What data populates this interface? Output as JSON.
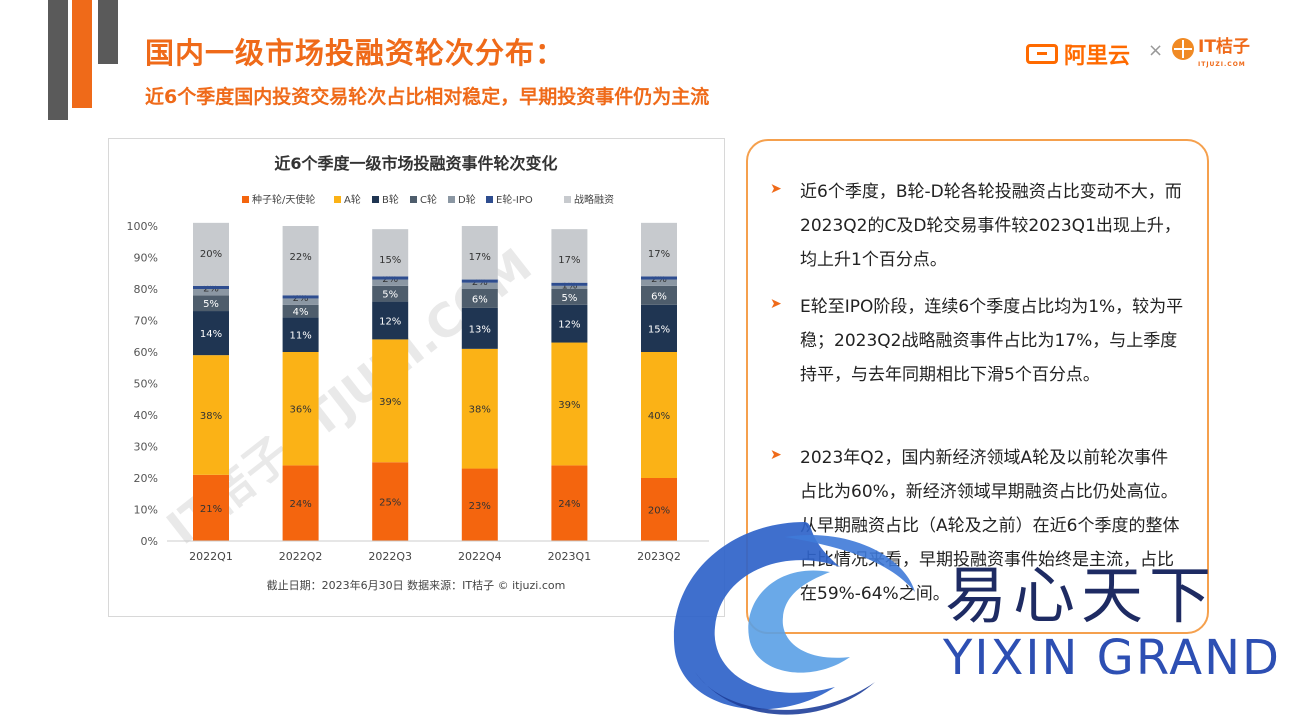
{
  "header": {
    "title": "国内一级市场投融资轮次分布：",
    "subtitle": "近6个季度国内投资交易轮次占比相对稳定，早期投资事件仍为主流"
  },
  "logos": {
    "aliyun": "阿里云",
    "separator": "×",
    "itjuzi": "IT桔子",
    "itjuzi_sub": "ITJUZI.COM"
  },
  "chart_data": {
    "type": "bar",
    "stacked": true,
    "title": "近6个季度一级市场投融资事件轮次变化",
    "categories": [
      "2022Q1",
      "2022Q2",
      "2022Q3",
      "2022Q4",
      "2023Q1",
      "2023Q2"
    ],
    "series": [
      {
        "name": "种子轮/天使轮",
        "color": "#f4650e",
        "values": [
          21,
          24,
          25,
          23,
          24,
          20
        ]
      },
      {
        "name": "A轮",
        "color": "#fbb216",
        "values": [
          38,
          36,
          39,
          38,
          39,
          40
        ]
      },
      {
        "name": "B轮",
        "color": "#1f3552",
        "values": [
          14,
          11,
          12,
          13,
          12,
          15
        ]
      },
      {
        "name": "C轮",
        "color": "#4e5d6c",
        "values": [
          5,
          4,
          5,
          6,
          5,
          6
        ]
      },
      {
        "name": "D轮",
        "color": "#8b97a3",
        "values": [
          2,
          2,
          2,
          2,
          1,
          2
        ]
      },
      {
        "name": "E轮-IPO",
        "color": "#2e4d8f",
        "values": [
          1,
          1,
          1,
          1,
          1,
          1
        ]
      },
      {
        "name": "战略融资",
        "color": "#c7cace",
        "values": [
          20,
          22,
          15,
          17,
          17,
          17
        ]
      }
    ],
    "labels": [
      [
        "21%",
        "24%",
        "25%",
        "23%",
        "24%",
        "20%"
      ],
      [
        "38%",
        "36%",
        "39%",
        "38%",
        "39%",
        "40%"
      ],
      [
        "14%",
        "11%",
        "12%",
        "13%",
        "12%",
        "15%"
      ],
      [
        "5%",
        "4%",
        "5%",
        "6%",
        "5%",
        "6%"
      ],
      [
        "2%",
        "2%",
        "2%",
        "2%",
        "1%",
        "2%"
      ],
      [
        "1%",
        "1%",
        "1%",
        "1%",
        "1%",
        "1%"
      ],
      [
        "20%",
        "22%",
        "15%",
        "17%",
        "17%",
        "17%"
      ]
    ],
    "yticks": [
      "0%",
      "10%",
      "20%",
      "30%",
      "40%",
      "50%",
      "60%",
      "70%",
      "80%",
      "90%",
      "100%"
    ],
    "ylim": [
      0,
      100
    ],
    "legend_position": "top",
    "footnote": "截止日期：2023年6月30日    数据来源：IT桔子 © itjuzi.com",
    "watermark": "IT桔子 ITJUZI.COM"
  },
  "panel": {
    "bullet_icon": "arrow-right-icon",
    "bullets": [
      {
        "text": "近6个季度，B轮-D轮各轮投融资占比变动不大，而2023Q2的C及D轮交易事件较2023Q1出现上升，均上升1个百分点。"
      },
      {
        "text": "E轮至IPO阶段，连续6个季度占比均为1%，较为平稳；2023Q2战略融资事件占比为17%，与上季度持平，与去年同期相比下滑5个百分点。"
      },
      {
        "text": "2023年Q2，国内新经济领域A轮及以前轮次事件占比为60%，新经济领域早期融资占比仍处高位。从早期融资占比（A轮及之前）在近6个季度的整体占比情况来看，早期投融资事件始终是主流，占比在59%-64%之间。"
      }
    ]
  },
  "watermark": {
    "cn": "易心天下",
    "en": "YIXIN GRAND"
  }
}
